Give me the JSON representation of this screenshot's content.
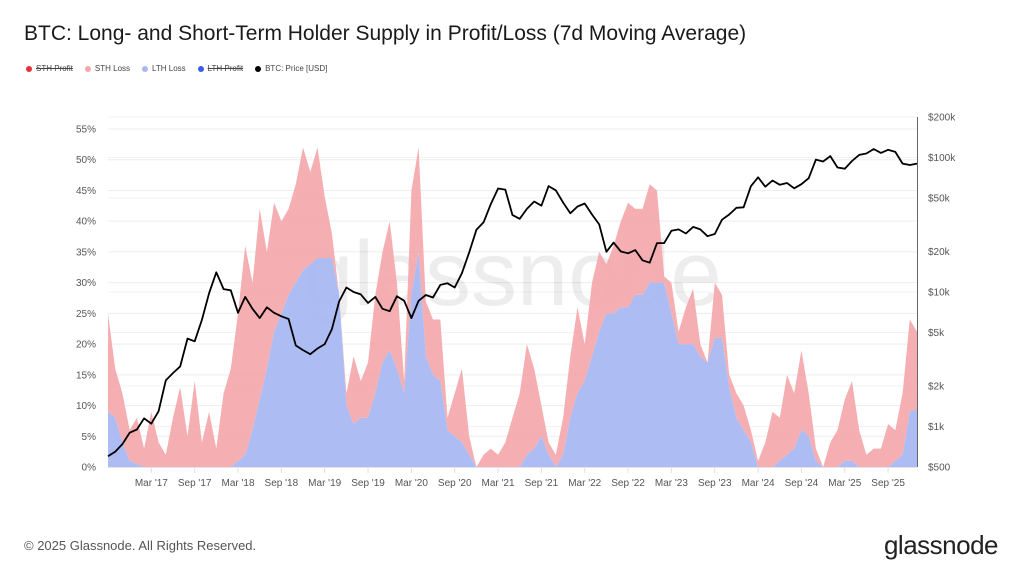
{
  "title": "BTC: Long- and Short-Term Holder Supply in Profit/Loss (7d Moving Average)",
  "legend": [
    {
      "label": "STH Profit",
      "color": "#e8303a",
      "disabled": true
    },
    {
      "label": "STH Loss",
      "color": "#f4a6aa",
      "disabled": false
    },
    {
      "label": "LTH Loss",
      "color": "#a9b8f2",
      "disabled": false
    },
    {
      "label": "LTH Profit",
      "color": "#3d5ae8",
      "disabled": true
    },
    {
      "label": "BTC: Price [USD]",
      "color": "#000000",
      "disabled": false
    }
  ],
  "watermark": "glassnode",
  "footer": {
    "copyright": "© 2025 Glassnode. All Rights Reserved.",
    "logo": "glassnode"
  },
  "chart_data": {
    "type": "area",
    "stacked": true,
    "title": "BTC: Long- and Short-Term Holder Supply in Profit/Loss (7d Moving Average)",
    "x_start": "2016-09",
    "x_end": "2026-01",
    "x_frequency": "monthly",
    "x_tick_labels": [
      "Mar '17",
      "Sep '17",
      "Mar '18",
      "Sep '18",
      "Mar '19",
      "Sep '19",
      "Mar '20",
      "Sep '20",
      "Mar '21",
      "Sep '21",
      "Mar '22",
      "Sep '22",
      "Mar '23",
      "Sep '23",
      "Mar '24",
      "Sep '24",
      "Mar '25",
      "Sep '25"
    ],
    "y_left": {
      "ylim": [
        0,
        55
      ],
      "unit": "%",
      "tick_labels": [
        "0%",
        "5%",
        "10%",
        "15%",
        "20%",
        "25%",
        "30%",
        "35%",
        "40%",
        "45%",
        "50%",
        "55%"
      ]
    },
    "y_right": {
      "scale": "log",
      "ylim": [
        500,
        200000
      ],
      "tick_labels": [
        "$500",
        "$1k",
        "$2k",
        "$5k",
        "$10k",
        "$20k",
        "$50k",
        "$100k",
        "$200k"
      ],
      "tick_values": [
        500,
        1000,
        2000,
        5000,
        10000,
        20000,
        50000,
        100000,
        200000
      ]
    },
    "grid": true,
    "legend_position": "top-left",
    "series": [
      {
        "name": "LTH Loss",
        "axis": "left",
        "color": "#a9b8f2",
        "values": [
          9,
          8,
          4,
          1,
          0.5,
          0,
          0,
          0,
          0,
          0,
          0,
          0,
          0,
          0,
          0,
          0,
          0,
          0,
          1,
          2,
          6,
          11,
          16,
          22,
          25,
          28,
          30,
          32,
          33,
          34,
          34,
          34,
          28,
          10,
          7,
          8,
          8,
          12,
          17,
          19,
          16,
          12,
          28,
          35,
          18,
          15,
          14,
          6,
          5,
          4,
          2,
          0,
          0,
          0,
          0,
          0,
          0,
          0,
          2,
          3,
          5,
          2,
          0,
          2,
          8,
          12,
          14,
          18,
          22,
          25,
          25,
          26,
          26,
          28,
          28,
          30,
          30,
          30,
          25,
          20,
          20,
          20,
          18,
          17,
          21,
          21,
          13,
          8,
          6,
          4,
          0,
          0,
          0,
          1,
          2,
          3,
          6,
          5,
          1,
          0,
          0,
          0,
          1,
          1,
          0,
          0,
          0,
          0,
          0,
          1,
          2,
          9,
          9.5
        ]
      },
      {
        "name": "STH Loss",
        "axis": "left",
        "color": "#f4a6aa",
        "values": [
          16,
          8,
          8,
          5,
          7.5,
          3,
          9,
          4,
          2,
          8,
          13,
          5,
          14,
          4,
          9,
          3,
          12,
          16,
          24,
          34,
          24,
          31,
          19,
          21,
          15,
          14,
          16,
          20,
          15,
          18,
          10,
          4,
          0,
          2,
          11,
          6,
          9,
          16,
          18,
          21,
          14,
          2,
          17,
          17,
          9,
          9,
          10,
          2,
          7,
          12,
          3,
          0,
          2,
          3,
          2,
          4,
          8,
          12,
          18,
          13,
          5,
          2,
          2,
          6,
          10,
          14,
          6,
          12,
          13,
          8,
          11,
          14,
          17,
          14,
          14,
          16,
          15,
          1,
          5,
          2,
          6,
          9,
          2,
          0,
          9,
          7,
          2,
          4,
          4,
          2,
          1,
          4,
          9,
          7,
          13,
          9,
          13,
          7,
          2,
          0,
          4,
          6,
          10,
          13,
          6,
          2,
          3,
          3,
          7,
          5,
          10,
          15,
          12.5
        ]
      },
      {
        "name": "BTC: Price [USD]",
        "axis": "right",
        "type": "line",
        "color": "#000000",
        "values": [
          600,
          650,
          740,
          900,
          950,
          1150,
          1050,
          1300,
          2200,
          2500,
          2800,
          4500,
          4300,
          6200,
          9800,
          14000,
          10500,
          10300,
          7000,
          9200,
          7500,
          6400,
          7700,
          7000,
          6600,
          6300,
          4000,
          3700,
          3450,
          3800,
          4100,
          5300,
          8500,
          10800,
          10000,
          9600,
          8300,
          9200,
          7500,
          7200,
          9300,
          8600,
          6400,
          8600,
          9500,
          9100,
          11300,
          11600,
          10800,
          13800,
          19700,
          29000,
          33000,
          45000,
          58800,
          57700,
          37300,
          35000,
          41500,
          47100,
          43800,
          61300,
          57000,
          46300,
          38500,
          43200,
          45500,
          37700,
          31800,
          19900,
          23300,
          20000,
          19400,
          20500,
          17200,
          16500,
          23100,
          23100,
          28500,
          29200,
          27200,
          30500,
          29200,
          26000,
          27000,
          34500,
          37700,
          42300,
          42600,
          61200,
          71300,
          60700,
          67500,
          62700,
          64600,
          59000,
          63300,
          70200,
          96400,
          93400,
          102400,
          84300,
          82500,
          94200,
          104600,
          107100,
          115700,
          108200,
          114000,
          110000,
          90000,
          88000,
          90000
        ]
      }
    ]
  }
}
